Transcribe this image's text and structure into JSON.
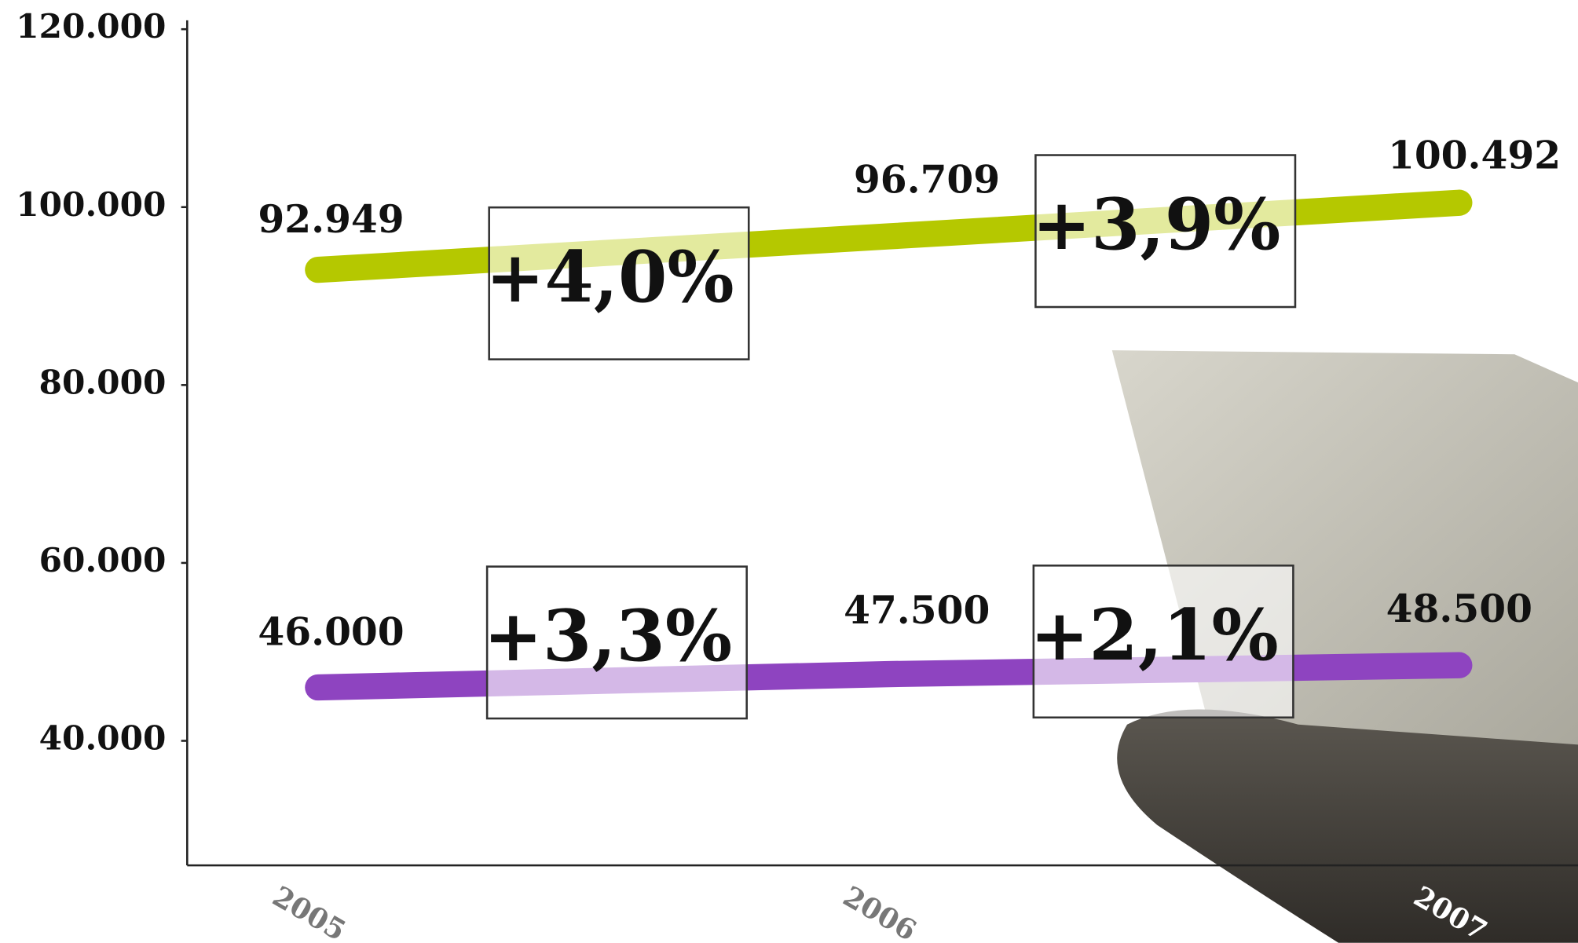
{
  "chart_data": {
    "type": "line",
    "categories": [
      "2005",
      "2006",
      "2007"
    ],
    "series": [
      {
        "color": "#b5c800",
        "values": [
          92949,
          96709,
          100492
        ],
        "value_labels": [
          "92.949",
          "96.709",
          "100.492"
        ]
      },
      {
        "color": "#8e44c0",
        "values": [
          46000,
          47500,
          48500
        ],
        "value_labels": [
          "46.000",
          "47.500",
          "48.500"
        ]
      }
    ],
    "ylim": [
      26000,
      121000
    ],
    "yticks": [
      {
        "value": 40000,
        "label": "40.000"
      },
      {
        "value": 60000,
        "label": "60.000"
      },
      {
        "value": 80000,
        "label": "80.000"
      },
      {
        "value": 100000,
        "label": "100.000"
      },
      {
        "value": 120000,
        "label": "120.000"
      }
    ],
    "annotations": [
      "+4,0%",
      "+3,9%",
      "+3,3%",
      "+2,1%"
    ]
  }
}
